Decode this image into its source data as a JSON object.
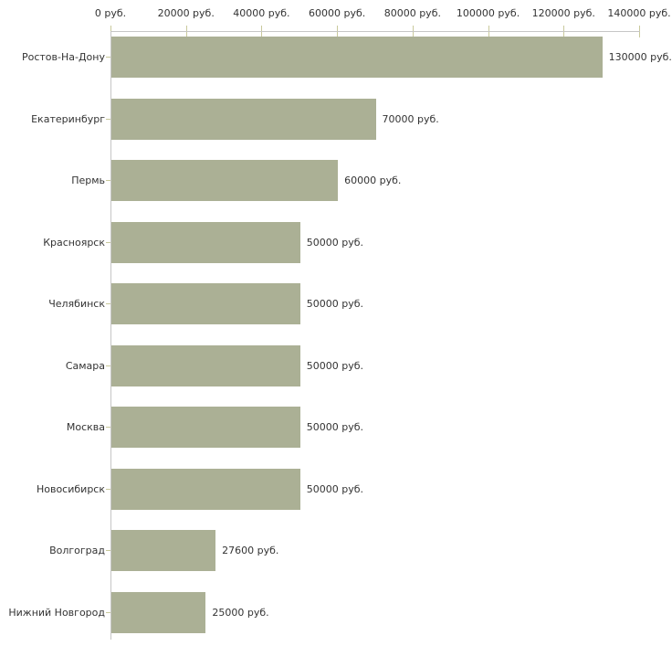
{
  "chart_data": {
    "type": "bar",
    "orientation": "horizontal",
    "title": "",
    "xlabel": "",
    "ylabel": "",
    "grid": false,
    "legend": false,
    "xlim": [
      0,
      140000
    ],
    "categories": [
      "Ростов-На-Дону",
      "Екатеринбург",
      "Пермь",
      "Красноярск",
      "Челябинск",
      "Самара",
      "Москва",
      "Новосибирск",
      "Волгоград",
      "Нижний Новгород"
    ],
    "values": [
      130000,
      70000,
      60000,
      50000,
      50000,
      50000,
      50000,
      50000,
      27600,
      25000
    ],
    "value_labels": [
      "130000 руб.",
      "70000 руб.",
      "60000 руб.",
      "50000 руб.",
      "50000 руб.",
      "50000 руб.",
      "50000 руб.",
      "50000 руб.",
      "27600 руб.",
      "25000 руб."
    ],
    "x_axis": {
      "position": "top",
      "ticks": [
        0,
        20000,
        40000,
        60000,
        80000,
        100000,
        120000,
        140000
      ],
      "tick_labels": [
        "0 руб.",
        "20000 руб.",
        "40000 руб.",
        "60000 руб.",
        "80000 руб.",
        "100000 руб.",
        "120000 руб.",
        "140000 руб."
      ]
    },
    "colors": {
      "bar": "#abb095",
      "axis": "#c6c6c6",
      "tick": "#c9c99c",
      "text": "#333333",
      "background": "#ffffff"
    }
  }
}
